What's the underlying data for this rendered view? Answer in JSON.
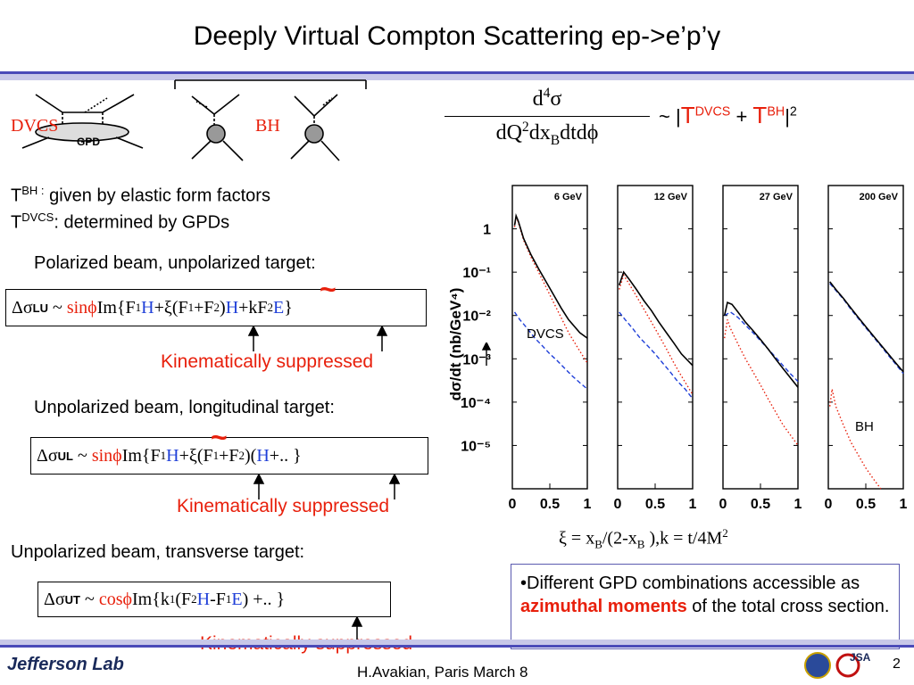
{
  "slide": {
    "title": "Deeply Virtual Compton Scattering ep->e’p’γ",
    "page_number": "2",
    "footer_text": "H.Avakian, Paris March 8",
    "logo_text": "Jefferson Lab",
    "jsa_text": "JSA"
  },
  "diagrams": {
    "dvcs_label": "DVCS",
    "gpd_label": "GPD",
    "bh_label": "BH"
  },
  "formula": {
    "numerator": "d",
    "numerator_sup": "4",
    "numerator_sym": "σ",
    "denominator_a": "dQ",
    "denominator_sup": "2",
    "denominator_b": "dx",
    "denominator_sub": "B",
    "denominator_c": "dtdϕ",
    "rhs_prefix": "~ |",
    "t_symbol": "T",
    "dvcs_sup": "DVCS",
    "plus": "+",
    "bh_sup": "BH",
    "rhs_suffix": "|",
    "power": "2"
  },
  "definitions": {
    "tbh_sup": "BH :",
    "tbh_text": "given by elastic form factors",
    "tdvcs_sup": "DVCS",
    "tdvcs_text": ": determined by GPDs",
    "t": "T"
  },
  "sections": [
    {
      "heading": "Polarized beam, unpolarized target:",
      "kinematic_note": "Kinematically suppressed"
    },
    {
      "heading": "Unpolarized beam, longitudinal target:",
      "kinematic_note": "Kinematically suppressed"
    },
    {
      "heading": "Unpolarized beam, transverse target:",
      "kinematic_note": "Kinematically suppressed"
    }
  ],
  "asymmetries": {
    "lu": {
      "delta": "Δσ",
      "sub": "LU",
      "tilde": "~",
      "trig": "sinϕ",
      "im": "Im{F",
      "s1": "1",
      "H": "H",
      "plus": " + ",
      "xi": "ξ",
      "paren": "(F",
      "s2": "1",
      "plusF": "+F",
      "s3": "2",
      "close": ")",
      "Ht": "H",
      "kf": " +kF",
      "s4": "2",
      "E": "E",
      "end": "}"
    },
    "ul": {
      "delta": "Δσ",
      "sub": "UL",
      "tilde": "~",
      "trig": "sinϕ",
      "im": "Im{F",
      "s1": "1",
      "Ht": "H",
      "plusxi": "+ξ",
      "paren": "(F",
      "s2": "1",
      "plusF": "+F",
      "s3": "2",
      "close": ")(",
      "H": "H",
      "end": " +..  }"
    },
    "ut": {
      "delta": "Δσ",
      "sub": "UT",
      "tilde": "~",
      "trig": "cosϕ",
      "im": "Im{k",
      "s1": "1",
      "paren": "(F",
      "s2": "2",
      "H": "H",
      "minus": "-F",
      "s3": "1",
      "E": "E",
      "end": " ) +.. }"
    }
  },
  "xi_relation": "ξ = x",
  "xi_relation_b": "/(2-x",
  "xi_relation_c": " ),k = t/4M",
  "xi_sub": "B",
  "xi_sup": "2",
  "note": {
    "bullet": "•Different GPD combinations accessible as ",
    "highlight": "azimuthal moments",
    "tail": " of the total cross section."
  },
  "chart_data": {
    "type": "line",
    "ylabel": "dσ/dt  (nb/GeV⁴)",
    "yscale": "log",
    "ylim": [
      1e-06,
      10
    ],
    "ytick_labels": [
      "1",
      "10⁻¹",
      "10⁻²",
      "10⁻³",
      "10⁻⁴",
      "10⁻⁵"
    ],
    "xlim": [
      0,
      1
    ],
    "xtick_labels": [
      "0",
      "0.5",
      "1"
    ],
    "panels": [
      {
        "label": "6 GeV"
      },
      {
        "label": "12 GeV"
      },
      {
        "label": "27 GeV"
      },
      {
        "label": "200 GeV"
      }
    ],
    "annotations": [
      "DVCS",
      "BH"
    ],
    "series": [
      {
        "color": "#000000",
        "style": "solid"
      },
      {
        "color": "#e8200c",
        "style": "dotted"
      },
      {
        "color": "#1f3fd8",
        "style": "dashed"
      }
    ],
    "curves": {
      "6 GeV": {
        "total": [
          [
            0.03,
            1.2
          ],
          [
            0.05,
            2.0
          ],
          [
            0.08,
            1.5
          ],
          [
            0.15,
            0.6
          ],
          [
            0.25,
            0.25
          ],
          [
            0.35,
            0.12
          ],
          [
            0.45,
            0.06
          ],
          [
            0.55,
            0.03
          ],
          [
            0.65,
            0.015
          ],
          [
            0.75,
            0.008
          ],
          [
            0.9,
            0.004
          ],
          [
            1.0,
            0.003
          ]
        ],
        "bh": [
          [
            0.03,
            1.1
          ],
          [
            0.05,
            1.9
          ],
          [
            0.08,
            1.4
          ],
          [
            0.15,
            0.55
          ],
          [
            0.25,
            0.22
          ],
          [
            0.35,
            0.1
          ],
          [
            0.45,
            0.045
          ],
          [
            0.55,
            0.02
          ],
          [
            0.65,
            0.009
          ],
          [
            0.75,
            0.004
          ],
          [
            0.9,
            0.0015
          ],
          [
            1.0,
            0.0008
          ]
        ],
        "dvcs": [
          [
            0.03,
            0.012
          ],
          [
            0.1,
            0.008
          ],
          [
            0.2,
            0.005
          ],
          [
            0.3,
            0.003
          ],
          [
            0.4,
            0.002
          ],
          [
            0.5,
            0.0013
          ],
          [
            0.6,
            0.0009
          ],
          [
            0.7,
            0.0006
          ],
          [
            0.8,
            0.0004
          ],
          [
            0.9,
            0.00028
          ],
          [
            1.0,
            0.0002
          ]
        ]
      },
      "12 GeV": {
        "total": [
          [
            0.02,
            0.05
          ],
          [
            0.08,
            0.1
          ],
          [
            0.15,
            0.07
          ],
          [
            0.25,
            0.04
          ],
          [
            0.35,
            0.022
          ],
          [
            0.45,
            0.013
          ],
          [
            0.55,
            0.007
          ],
          [
            0.65,
            0.004
          ],
          [
            0.75,
            0.0023
          ],
          [
            0.85,
            0.0013
          ],
          [
            1.0,
            0.0007
          ]
        ],
        "bh": [
          [
            0.02,
            0.04
          ],
          [
            0.08,
            0.085
          ],
          [
            0.15,
            0.055
          ],
          [
            0.25,
            0.028
          ],
          [
            0.35,
            0.014
          ],
          [
            0.45,
            0.007
          ],
          [
            0.55,
            0.0035
          ],
          [
            0.65,
            0.0017
          ],
          [
            0.75,
            0.0008
          ],
          [
            0.85,
            0.0004
          ],
          [
            1.0,
            0.00015
          ]
        ],
        "dvcs": [
          [
            0.02,
            0.012
          ],
          [
            0.1,
            0.008
          ],
          [
            0.2,
            0.005
          ],
          [
            0.3,
            0.003
          ],
          [
            0.4,
            0.002
          ],
          [
            0.5,
            0.0013
          ],
          [
            0.6,
            0.0008
          ],
          [
            0.7,
            0.0005
          ],
          [
            0.8,
            0.0003
          ],
          [
            0.9,
            0.0002
          ],
          [
            1.0,
            0.00012
          ]
        ]
      },
      "27 GeV": {
        "total": [
          [
            0.02,
            0.01
          ],
          [
            0.06,
            0.02
          ],
          [
            0.12,
            0.018
          ],
          [
            0.2,
            0.012
          ],
          [
            0.3,
            0.007
          ],
          [
            0.4,
            0.0045
          ],
          [
            0.5,
            0.0028
          ],
          [
            0.6,
            0.0017
          ],
          [
            0.7,
            0.001
          ],
          [
            0.8,
            0.0006
          ],
          [
            1.0,
            0.00022
          ]
        ],
        "bh": [
          [
            0.02,
            0.003
          ],
          [
            0.06,
            0.008
          ],
          [
            0.1,
            0.005
          ],
          [
            0.2,
            0.0022
          ],
          [
            0.3,
            0.001
          ],
          [
            0.4,
            0.0005
          ],
          [
            0.5,
            0.00025
          ],
          [
            0.6,
            0.00012
          ],
          [
            0.7,
            6e-05
          ],
          [
            0.8,
            3e-05
          ],
          [
            1.0,
            1e-05
          ]
        ],
        "dvcs": [
          [
            0.02,
            0.01
          ],
          [
            0.1,
            0.012
          ],
          [
            0.2,
            0.009
          ],
          [
            0.3,
            0.006
          ],
          [
            0.4,
            0.004
          ],
          [
            0.5,
            0.0026
          ],
          [
            0.6,
            0.0017
          ],
          [
            0.7,
            0.0011
          ],
          [
            0.8,
            0.0007
          ],
          [
            0.9,
            0.00045
          ],
          [
            1.0,
            0.0003
          ]
        ]
      },
      "200 GeV": {
        "total": [
          [
            0.02,
            0.06
          ],
          [
            0.1,
            0.04
          ],
          [
            0.2,
            0.025
          ],
          [
            0.3,
            0.015
          ],
          [
            0.4,
            0.009
          ],
          [
            0.5,
            0.0055
          ],
          [
            0.6,
            0.0034
          ],
          [
            0.7,
            0.0021
          ],
          [
            0.8,
            0.0013
          ],
          [
            0.9,
            0.0008
          ],
          [
            1.0,
            0.0005
          ]
        ],
        "bh": [
          [
            0.02,
            8e-05
          ],
          [
            0.05,
            0.0002
          ],
          [
            0.1,
            8e-05
          ],
          [
            0.2,
            3e-05
          ],
          [
            0.3,
            1.2e-05
          ],
          [
            0.4,
            6e-06
          ],
          [
            0.5,
            3e-06
          ],
          [
            0.6,
            1.7e-06
          ],
          [
            0.7,
            1e-06
          ]
        ],
        "dvcs": [
          [
            0.02,
            0.055
          ],
          [
            0.1,
            0.038
          ],
          [
            0.2,
            0.024
          ],
          [
            0.3,
            0.014
          ],
          [
            0.4,
            0.0085
          ],
          [
            0.5,
            0.0052
          ],
          [
            0.6,
            0.0032
          ],
          [
            0.7,
            0.002
          ],
          [
            0.8,
            0.0012
          ],
          [
            0.9,
            0.00075
          ],
          [
            1.0,
            0.00046
          ]
        ]
      }
    }
  }
}
